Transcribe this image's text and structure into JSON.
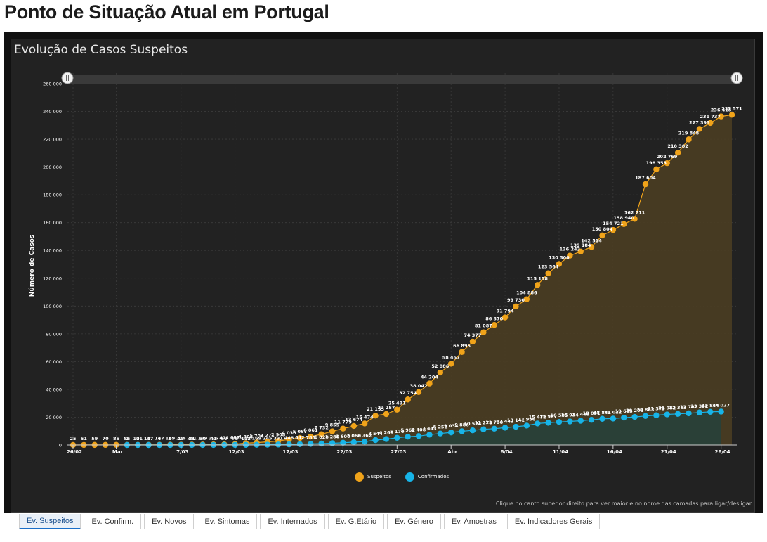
{
  "page": {
    "title": "Ponto de Situação Atual em Portugal"
  },
  "card": {
    "title": "Evolução de Casos Suspeitos",
    "hint": "Clique no canto superior direito para ver maior e no nome das camadas para ligar/desligar"
  },
  "tabs": [
    {
      "label": "Ev. Suspeitos",
      "active": true
    },
    {
      "label": "Ev. Confirm.",
      "active": false
    },
    {
      "label": "Ev. Novos",
      "active": false
    },
    {
      "label": "Ev. Sintomas",
      "active": false
    },
    {
      "label": "Ev. Internados",
      "active": false
    },
    {
      "label": "Ev. G.Etário",
      "active": false
    },
    {
      "label": "Ev. Género",
      "active": false
    },
    {
      "label": "Ev. Amostras",
      "active": false
    },
    {
      "label": "Ev. Indicadores Gerais",
      "active": false
    }
  ],
  "colors": {
    "suspeitos": "#f0a31a",
    "confirmados": "#17b4e8",
    "suspeitos_fill": "#4a3d22",
    "confirmados_fill": "#27413a",
    "plot_bg": "#222222",
    "grid": "#3c3c3c",
    "text": "#ffffff"
  },
  "chart_data": {
    "type": "line",
    "title": "Evolução de Casos Suspeitos",
    "ylabel": "Número de Casos",
    "xlabel": "",
    "ylim": [
      0,
      260000
    ],
    "yticks": [
      "0",
      "20 000",
      "40 000",
      "60 000",
      "80 000",
      "100 000",
      "120 000",
      "140 000",
      "160 000",
      "180 000",
      "200 000",
      "220 000",
      "240 000",
      "260 000"
    ],
    "x_start": "26/02",
    "x_end": "27/04",
    "xticks": [
      {
        "label": "26/02",
        "day": 0
      },
      {
        "label": "Mar",
        "day": 4
      },
      {
        "label": "7/03",
        "day": 10
      },
      {
        "label": "12/03",
        "day": 15
      },
      {
        "label": "17/03",
        "day": 20
      },
      {
        "label": "22/03",
        "day": 25
      },
      {
        "label": "27/03",
        "day": 30
      },
      {
        "label": "Abr",
        "day": 35
      },
      {
        "label": "6/04",
        "day": 40
      },
      {
        "label": "11/04",
        "day": 45
      },
      {
        "label": "16/04",
        "day": 50
      },
      {
        "label": "21/04",
        "day": 55
      },
      {
        "label": "26/04",
        "day": 60
      }
    ],
    "legend_position": "bottom-center",
    "grid": true,
    "series": [
      {
        "name": "Suspeitos",
        "start_day": 0,
        "values": [
          25,
          51,
          59,
          70,
          85,
          85,
          101,
          117,
          147,
          189,
          224,
          281,
          339,
          375,
          471,
          637,
          1308,
          1704,
          2271,
          2908,
          4030,
          5067,
          6061,
          7732,
          9855,
          11779,
          13674,
          15474,
          21155,
          22257,
          25431,
          32754,
          38042,
          44204,
          52086,
          58457,
          66895,
          74377,
          81087,
          86370,
          91794,
          99730,
          104886,
          115158,
          123564,
          130300,
          136243,
          139184,
          142514,
          150804,
          154721,
          158940,
          162711,
          187604,
          198353,
          202769,
          210302,
          219848,
          227393,
          231737,
          236418,
          237571
        ],
        "labels": [
          "25",
          "51",
          "59",
          "70",
          "85",
          "85",
          "101",
          "117",
          "147",
          "189",
          "224",
          "281",
          "339",
          "375",
          "471",
          "637",
          "1 308",
          "1 704",
          "2 271",
          "2 908",
          "4 030",
          "5 067",
          "6 061",
          "7 732",
          "9 855",
          "11 779",
          "13 674",
          "15 474",
          "21 155",
          "22 257",
          "25 431",
          "32 754",
          "38 042",
          "44 204",
          "52 086",
          "58 457",
          "66 895",
          "74 377",
          "81 087",
          "86 370",
          "91 794",
          "99 730",
          "104 886",
          "115 158",
          "123 564",
          "130 300",
          "136 243",
          "139 184",
          "142 514",
          "150 804",
          "154 721",
          "158 940",
          "162 711",
          "187 604",
          "198 353",
          "202 769",
          "210 302",
          "219 848",
          "227 393",
          "231 737",
          "236 418",
          "237 571"
        ]
      },
      {
        "name": "Confirmados",
        "start_day": 5,
        "values": [
          2,
          2,
          4,
          6,
          9,
          13,
          21,
          30,
          41,
          59,
          78,
          112,
          169,
          245,
          331,
          448,
          642,
          785,
          1020,
          1280,
          1600,
          2060,
          2362,
          3544,
          4268,
          5170,
          5962,
          6408,
          7443,
          8251,
          9034,
          9886,
          10524,
          11278,
          11730,
          12442,
          13141,
          13956,
          15472,
          15987,
          16585,
          16934,
          17448,
          18091,
          18841,
          19022,
          19685,
          20206,
          20863,
          21379,
          21982,
          22353,
          22797,
          23392,
          23864,
          24027
        ],
        "labels": [
          "2",
          "2",
          "4",
          "6",
          "9",
          "13",
          "21",
          "30",
          "41",
          "59",
          "78",
          "112",
          "169",
          "245",
          "331",
          "448",
          "642",
          "785",
          "1 020",
          "1 280",
          "1 600",
          "2 060",
          "2 362",
          "3 544",
          "4 268",
          "5 170",
          "5 962",
          "6 408",
          "7 443",
          "8 251",
          "9 034",
          "9 886",
          "10 524",
          "11 278",
          "11 730",
          "12 442",
          "13 141",
          "13 956",
          "15 472",
          "15 987",
          "16 585",
          "16 934",
          "17 448",
          "18 091",
          "18 841",
          "19 022",
          "19 685",
          "20 206",
          "20 863",
          "21 379",
          "21 982",
          "22 353",
          "22 797",
          "23 392",
          "23 864",
          "24 027"
        ]
      }
    ]
  }
}
